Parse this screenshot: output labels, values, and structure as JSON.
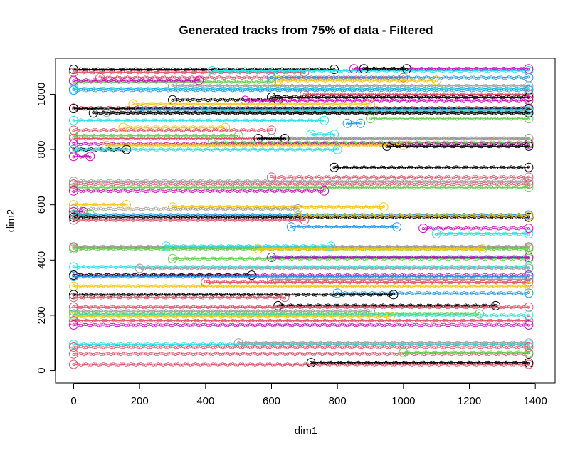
{
  "chart_data": {
    "type": "scatter",
    "title": "Generated tracks from 75% of data - Filtered",
    "xlabel": "dim1",
    "ylabel": "dim2",
    "xlim": [
      -55,
      1460
    ],
    "ylim": [
      -45,
      1130
    ],
    "xticks": [
      0,
      200,
      400,
      600,
      800,
      1000,
      1200,
      1400
    ],
    "yticks": [
      0,
      200,
      400,
      600,
      800,
      1000
    ],
    "colors": {
      "black": "#000000",
      "red": "#DF536B",
      "green": "#61D04F",
      "blue": "#2297E6",
      "cyan": "#28E2E5",
      "magenta": "#CD0BBC",
      "yellow": "#F5C710",
      "gray": "#9E9E9E"
    },
    "series": [
      {
        "color": "black",
        "x": [
          0,
          790
        ],
        "y": 1090
      },
      {
        "color": "red",
        "x": [
          0,
          700
        ],
        "y": 1080
      },
      {
        "color": "cyan",
        "x": [
          420,
          1380
        ],
        "y": 1085
      },
      {
        "color": "magenta",
        "x": [
          850,
          1380
        ],
        "y": 1092
      },
      {
        "color": "black",
        "x": [
          880,
          1010
        ],
        "y": 1092
      },
      {
        "color": "red",
        "x": [
          80,
          1000
        ],
        "y": 1060
      },
      {
        "color": "blue",
        "x": [
          600,
          1380
        ],
        "y": 1060
      },
      {
        "color": "yellow",
        "x": [
          620,
          1100
        ],
        "y": 1050
      },
      {
        "color": "green",
        "x": [
          0,
          600
        ],
        "y": 1045
      },
      {
        "color": "magenta",
        "x": [
          0,
          380
        ],
        "y": 1050
      },
      {
        "color": "cyan",
        "x": [
          0,
          1380
        ],
        "y": 1020
      },
      {
        "color": "gray",
        "x": [
          300,
          1380
        ],
        "y": 1030
      },
      {
        "color": "blue",
        "x": [
          0,
          1380
        ],
        "y": 1015
      },
      {
        "color": "red",
        "x": [
          700,
          1380
        ],
        "y": 1000
      },
      {
        "color": "black",
        "x": [
          600,
          1380
        ],
        "y": 990
      },
      {
        "color": "black",
        "x": [
          300,
          620
        ],
        "y": 980
      },
      {
        "color": "magenta",
        "x": [
          520,
          1380
        ],
        "y": 978
      },
      {
        "color": "yellow",
        "x": [
          180,
          900
        ],
        "y": 965
      },
      {
        "color": "red",
        "x": [
          0,
          1380
        ],
        "y": 950
      },
      {
        "color": "black",
        "x": [
          0,
          1380
        ],
        "y": 948
      },
      {
        "color": "blue",
        "x": [
          200,
          1380
        ],
        "y": 945
      },
      {
        "color": "cyan",
        "x": [
          400,
          1380
        ],
        "y": 940
      },
      {
        "color": "gray",
        "x": [
          100,
          1380
        ],
        "y": 935
      },
      {
        "color": "black",
        "x": [
          60,
          1380
        ],
        "y": 932
      },
      {
        "color": "green",
        "x": [
          900,
          1380
        ],
        "y": 912
      },
      {
        "color": "cyan",
        "x": [
          0,
          760
        ],
        "y": 905
      },
      {
        "color": "yellow",
        "x": [
          150,
          460
        ],
        "y": 880
      },
      {
        "color": "blue",
        "x": [
          830,
          870
        ],
        "y": 895
      },
      {
        "color": "red",
        "x": [
          0,
          600
        ],
        "y": 870
      },
      {
        "color": "green",
        "x": [
          0,
          500
        ],
        "y": 850
      },
      {
        "color": "cyan",
        "x": [
          720,
          790
        ],
        "y": 855
      },
      {
        "color": "red",
        "x": [
          0,
          1380
        ],
        "y": 840
      },
      {
        "color": "gray",
        "x": [
          600,
          1380
        ],
        "y": 840
      },
      {
        "color": "black",
        "x": [
          560,
          640
        ],
        "y": 840
      },
      {
        "color": "green",
        "x": [
          420,
          1380
        ],
        "y": 825
      },
      {
        "color": "magenta",
        "x": [
          0,
          1380
        ],
        "y": 820
      },
      {
        "color": "yellow",
        "x": [
          100,
          1000
        ],
        "y": 815
      },
      {
        "color": "black",
        "x": [
          0,
          160
        ],
        "y": 800
      },
      {
        "color": "black",
        "x": [
          950,
          1380
        ],
        "y": 812
      },
      {
        "color": "cyan",
        "x": [
          0,
          800
        ],
        "y": 800
      },
      {
        "color": "magenta",
        "x": [
          0,
          50
        ],
        "y": 775
      },
      {
        "color": "black",
        "x": [
          790,
          1380
        ],
        "y": 735
      },
      {
        "color": "red",
        "x": [
          600,
          1380
        ],
        "y": 700
      },
      {
        "color": "gray",
        "x": [
          0,
          1380
        ],
        "y": 685
      },
      {
        "color": "red",
        "x": [
          0,
          1380
        ],
        "y": 675
      },
      {
        "color": "green",
        "x": [
          0,
          1380
        ],
        "y": 662
      },
      {
        "color": "magenta",
        "x": [
          0,
          760
        ],
        "y": 650
      },
      {
        "color": "yellow",
        "x": [
          0,
          160
        ],
        "y": 600
      },
      {
        "color": "yellow",
        "x": [
          300,
          940
        ],
        "y": 592
      },
      {
        "color": "gray",
        "x": [
          0,
          680
        ],
        "y": 585
      },
      {
        "color": "magenta",
        "x": [
          0,
          30
        ],
        "y": 575
      },
      {
        "color": "green",
        "x": [
          0,
          50
        ],
        "y": 565
      },
      {
        "color": "blue",
        "x": [
          0,
          1380
        ],
        "y": 563
      },
      {
        "color": "black",
        "x": [
          0,
          1380
        ],
        "y": 555
      },
      {
        "color": "yellow",
        "x": [
          680,
          1380
        ],
        "y": 560
      },
      {
        "color": "red",
        "x": [
          0,
          700
        ],
        "y": 545
      },
      {
        "color": "blue",
        "x": [
          660,
          980
        ],
        "y": 520
      },
      {
        "color": "magenta",
        "x": [
          1060,
          1380
        ],
        "y": 515
      },
      {
        "color": "cyan",
        "x": [
          1100,
          1380
        ],
        "y": 495
      },
      {
        "color": "red",
        "x": [
          0,
          1380
        ],
        "y": 445
      },
      {
        "color": "gray",
        "x": [
          0,
          1380
        ],
        "y": 448
      },
      {
        "color": "green",
        "x": [
          0,
          1380
        ],
        "y": 440
      },
      {
        "color": "cyan",
        "x": [
          280,
          780
        ],
        "y": 450
      },
      {
        "color": "yellow",
        "x": [
          560,
          1240
        ],
        "y": 440
      },
      {
        "color": "blue",
        "x": [
          600,
          1380
        ],
        "y": 410
      },
      {
        "color": "green",
        "x": [
          300,
          1380
        ],
        "y": 405
      },
      {
        "color": "magenta",
        "x": [
          600,
          1380
        ],
        "y": 410
      },
      {
        "color": "cyan",
        "x": [
          0,
          1380
        ],
        "y": 375
      },
      {
        "color": "gray",
        "x": [
          200,
          1380
        ],
        "y": 370
      },
      {
        "color": "magenta",
        "x": [
          0,
          1380
        ],
        "y": 345
      },
      {
        "color": "black",
        "x": [
          0,
          540
        ],
        "y": 345
      },
      {
        "color": "blue",
        "x": [
          0,
          1380
        ],
        "y": 340
      },
      {
        "color": "gray",
        "x": [
          600,
          1380
        ],
        "y": 330
      },
      {
        "color": "red",
        "x": [
          400,
          1380
        ],
        "y": 320
      },
      {
        "color": "yellow",
        "x": [
          0,
          1380
        ],
        "y": 305
      },
      {
        "color": "blue",
        "x": [
          800,
          1380
        ],
        "y": 280
      },
      {
        "color": "black",
        "x": [
          0,
          970
        ],
        "y": 275
      },
      {
        "color": "red",
        "x": [
          0,
          640
        ],
        "y": 265
      },
      {
        "color": "black",
        "x": [
          620,
          1280
        ],
        "y": 235
      },
      {
        "color": "red",
        "x": [
          0,
          1380
        ],
        "y": 230
      },
      {
        "color": "gray",
        "x": [
          0,
          900
        ],
        "y": 215
      },
      {
        "color": "green",
        "x": [
          0,
          1230
        ],
        "y": 205
      },
      {
        "color": "cyan",
        "x": [
          0,
          1380
        ],
        "y": 200
      },
      {
        "color": "yellow",
        "x": [
          0,
          960
        ],
        "y": 195
      },
      {
        "color": "red",
        "x": [
          0,
          1380
        ],
        "y": 180
      },
      {
        "color": "magenta",
        "x": [
          0,
          1380
        ],
        "y": 165
      },
      {
        "color": "cyan",
        "x": [
          0,
          1380
        ],
        "y": 95
      },
      {
        "color": "gray",
        "x": [
          500,
          1380
        ],
        "y": 100
      },
      {
        "color": "red",
        "x": [
          0,
          1380
        ],
        "y": 85
      },
      {
        "color": "red",
        "x": [
          0,
          1380
        ],
        "y": 60
      },
      {
        "color": "green",
        "x": [
          1000,
          1380
        ],
        "y": 65
      },
      {
        "color": "red",
        "x": [
          0,
          1380
        ],
        "y": 22
      },
      {
        "color": "black",
        "x": [
          720,
          1380
        ],
        "y": 28
      }
    ]
  }
}
